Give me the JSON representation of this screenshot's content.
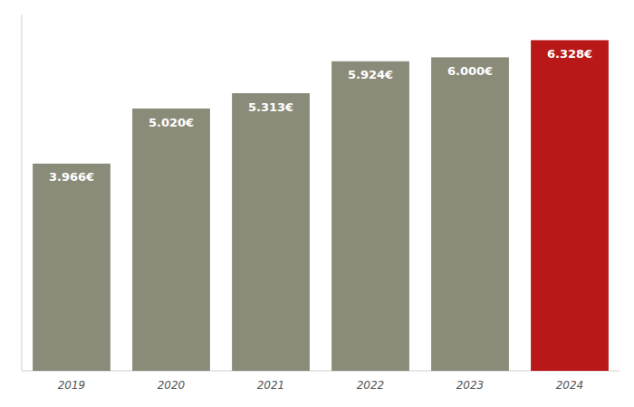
{
  "chart_data": {
    "type": "bar",
    "categories": [
      "2019",
      "2020",
      "2021",
      "2022",
      "2023",
      "2024"
    ],
    "values": [
      3966,
      5020,
      5313,
      5924,
      6000,
      6328
    ],
    "value_labels": [
      "3.966€",
      "5.020€",
      "5.313€",
      "5.924€",
      "6.000€",
      "6.328€"
    ],
    "colors": [
      "#8b8b79",
      "#8b8b79",
      "#8b8b79",
      "#8b8b79",
      "#8b8b79",
      "#b81818"
    ],
    "ylim": [
      0,
      6820
    ],
    "grid": false,
    "data_labels": true,
    "tick_labels": "x"
  }
}
